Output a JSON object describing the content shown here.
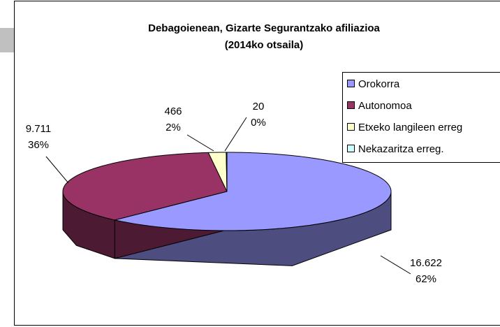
{
  "chart_data": {
    "type": "pie3d",
    "title": [
      "Debagoienean, Gizarte Segurantzako afiliazioa",
      "(2014ko otsaila)"
    ],
    "categories": [
      "Orokorra",
      "Autonomoa",
      "Etxeko langileen erreg",
      "Nekazaritza erreg."
    ],
    "values": [
      16622,
      9711,
      466,
      20
    ],
    "value_labels": [
      "16.622",
      "9.711",
      "466",
      "20"
    ],
    "percent_labels": [
      "62%",
      "36%",
      "2%",
      "0%"
    ],
    "colors": [
      "#9999ff",
      "#993366",
      "#ffffcc",
      "#ccffff"
    ],
    "legend": "right"
  }
}
